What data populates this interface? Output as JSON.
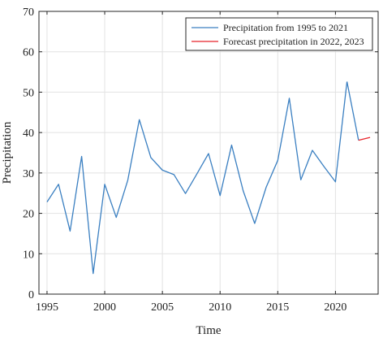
{
  "chart_data": {
    "type": "line",
    "xlabel": "Time",
    "ylabel": "Precipitation",
    "xlim": [
      1994.3,
      2023.7
    ],
    "ylim": [
      0,
      70
    ],
    "xticks": [
      1995,
      2000,
      2005,
      2010,
      2015,
      2020
    ],
    "yticks": [
      0,
      10,
      20,
      30,
      40,
      50,
      60,
      70
    ],
    "grid": true,
    "legend_position": "top-right",
    "series": [
      {
        "name": "Precipitation from 1995 to 2021",
        "color": "#3a7fc1",
        "x": [
          1995,
          1996,
          1997,
          1998,
          1999,
          2000,
          2001,
          2002,
          2003,
          2004,
          2005,
          2006,
          2007,
          2008,
          2009,
          2010,
          2011,
          2012,
          2013,
          2014,
          2015,
          2016,
          2017,
          2018,
          2019,
          2020,
          2021
        ],
        "y": [
          22.8,
          27.2,
          15.6,
          34.1,
          5.1,
          27.2,
          19.0,
          28.2,
          43.2,
          33.8,
          30.7,
          29.6,
          24.9,
          29.8,
          34.8,
          24.4,
          36.9,
          25.6,
          17.5,
          26.5,
          33.1,
          48.5,
          28.3,
          35.6,
          31.6,
          27.8,
          52.6
        ]
      },
      {
        "name": "Forecast precipitation in 2022, 2023",
        "color": "#e8232a",
        "x": [
          2022,
          2023
        ],
        "y": [
          38.1,
          38.8
        ]
      }
    ]
  },
  "connector_color": "#3a7fc1"
}
